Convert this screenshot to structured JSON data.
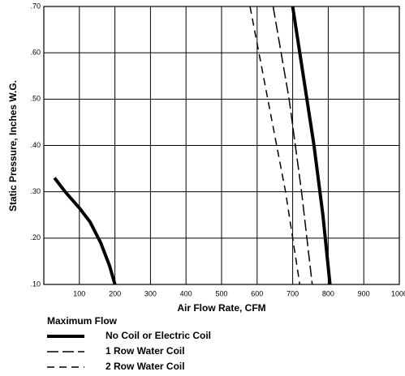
{
  "chart_data": {
    "type": "line",
    "xlabel": "Air Flow Rate, CFM",
    "ylabel": "Static Pressure, Inches W.G.",
    "xlim": [
      0,
      1000
    ],
    "ylim": [
      0.1,
      0.7
    ],
    "xticks": [
      100,
      200,
      300,
      400,
      500,
      600,
      700,
      800,
      900,
      1000
    ],
    "yticks": [
      {
        "value": 0.1,
        "label": ".10"
      },
      {
        "value": 0.2,
        "label": ".20"
      },
      {
        "value": 0.3,
        "label": ".30"
      },
      {
        "value": 0.4,
        "label": ".40"
      },
      {
        "value": 0.5,
        "label": ".50"
      },
      {
        "value": 0.6,
        "label": ".60"
      },
      {
        "value": 0.7,
        "label": ".70"
      }
    ],
    "grid": true,
    "legend_title": "Maximum Flow",
    "series": [
      {
        "name": null,
        "color": "#000000",
        "dash": "solid",
        "width": 4,
        "x": [
          30,
          60,
          100,
          130,
          160,
          185,
          200
        ],
        "values": [
          0.33,
          0.3,
          0.265,
          0.235,
          0.19,
          0.14,
          0.1
        ]
      },
      {
        "name": "No Coil or Electric Coil",
        "color": "#000000",
        "dash": "solid",
        "width": 4,
        "x": [
          700,
          730,
          760,
          785,
          805
        ],
        "values": [
          0.7,
          0.55,
          0.4,
          0.25,
          0.1
        ]
      },
      {
        "name": "1 Row Water Coil",
        "color": "#000000",
        "dash": "long-dash",
        "width": 1.5,
        "x": [
          645,
          690,
          725,
          755
        ],
        "values": [
          0.7,
          0.5,
          0.3,
          0.1
        ]
      },
      {
        "name": "2 Row Water Coil",
        "color": "#000000",
        "dash": "dash",
        "width": 1.5,
        "x": [
          580,
          630,
          680,
          720
        ],
        "values": [
          0.7,
          0.5,
          0.3,
          0.1
        ]
      }
    ]
  }
}
